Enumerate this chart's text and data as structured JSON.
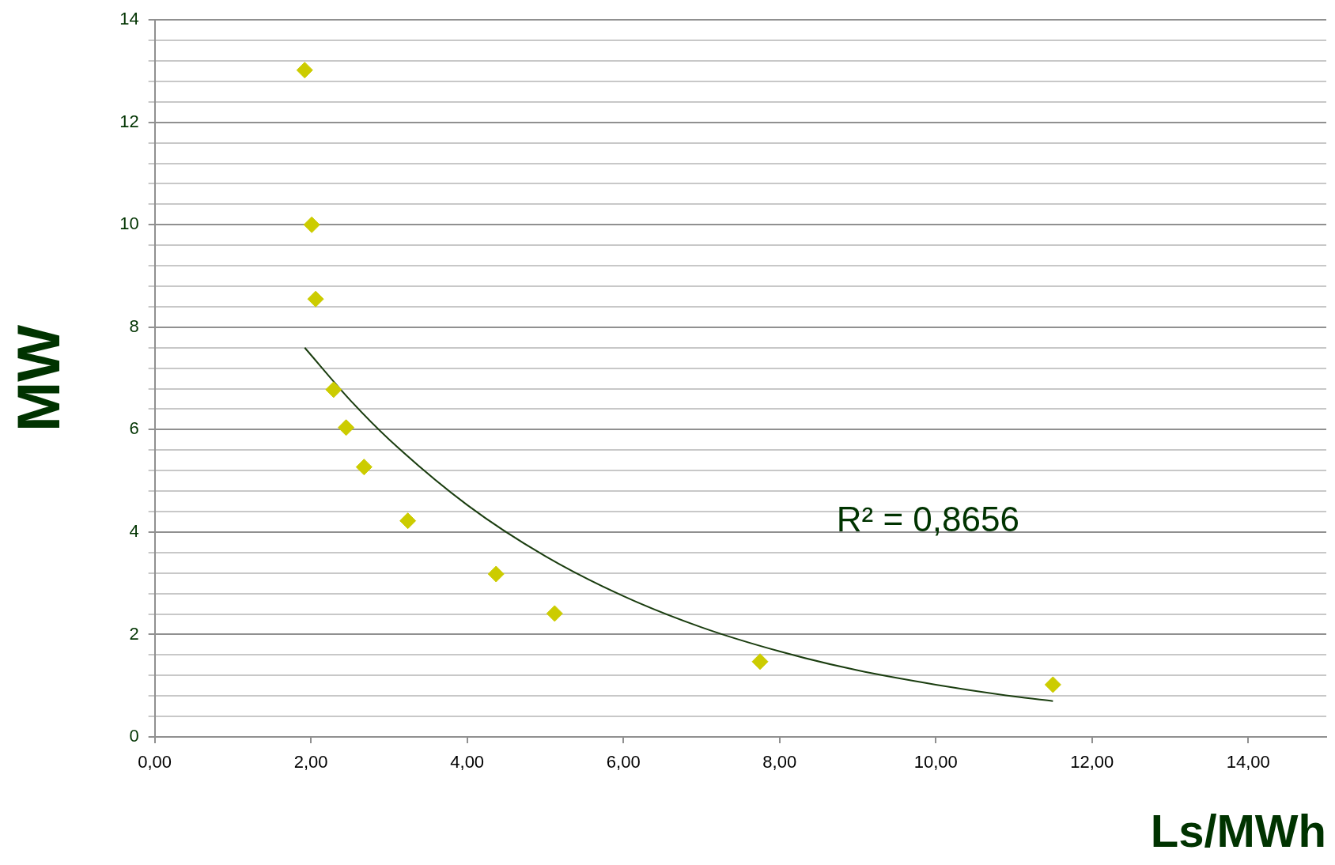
{
  "chart_data": {
    "type": "scatter",
    "xlabel": "Ls/MWh",
    "ylabel": "MW",
    "marker": "diamond",
    "grid": "y",
    "legend": false,
    "xlim": [
      0,
      15
    ],
    "ylim": [
      0,
      14
    ],
    "xticks": [
      {
        "value": 0,
        "label": "0,00"
      },
      {
        "value": 2,
        "label": "2,00"
      },
      {
        "value": 4,
        "label": "4,00"
      },
      {
        "value": 6,
        "label": "6,00"
      },
      {
        "value": 8,
        "label": "8,00"
      },
      {
        "value": 10,
        "label": "10,00"
      },
      {
        "value": 12,
        "label": "12,00"
      },
      {
        "value": 14,
        "label": "14,00"
      }
    ],
    "yticks": [
      0,
      {
        "value": 0.4,
        "label": null
      },
      {
        "value": 0.8,
        "label": null
      },
      {
        "value": 1.2,
        "label": null
      },
      {
        "value": 1.6,
        "label": null
      },
      2,
      {
        "value": 2.4,
        "label": null
      },
      {
        "value": 2.8,
        "label": null
      },
      {
        "value": 3.2,
        "label": null
      },
      {
        "value": 3.6,
        "label": null
      },
      4,
      {
        "value": 4.4,
        "label": null
      },
      {
        "value": 4.8,
        "label": null
      },
      {
        "value": 5.2,
        "label": null
      },
      {
        "value": 5.6,
        "label": null
      },
      6,
      {
        "value": 6.4,
        "label": null
      },
      {
        "value": 6.8,
        "label": null
      },
      {
        "value": 7.2,
        "label": null
      },
      {
        "value": 7.6,
        "label": null
      },
      8,
      {
        "value": 8.4,
        "label": null
      },
      {
        "value": 8.8,
        "label": null
      },
      {
        "value": 9.2,
        "label": null
      },
      {
        "value": 9.6,
        "label": null
      },
      10,
      {
        "value": 10.4,
        "label": null
      },
      {
        "value": 10.8,
        "label": null
      },
      {
        "value": 11.2,
        "label": null
      },
      {
        "value": 11.6,
        "label": null
      },
      12,
      {
        "value": 12.4,
        "label": null
      },
      {
        "value": 12.8,
        "label": null
      },
      {
        "value": 13.2,
        "label": null
      },
      {
        "value": 13.6,
        "label": null
      },
      14
    ],
    "series": [
      {
        "color": "#cccc00",
        "x": [
          1.92,
          2.01,
          2.06,
          2.29,
          2.45,
          2.68,
          3.24,
          4.37,
          5.12,
          7.75,
          11.5
        ],
        "values": [
          13.02,
          10.0,
          8.55,
          6.78,
          6.04,
          5.27,
          4.22,
          3.18,
          2.41,
          1.47,
          1.02
        ]
      },
      {
        "type": "line",
        "marker": "none",
        "color": "#1a3d0f",
        "x": [
          1.92,
          2.5,
          3,
          4,
          5,
          6,
          7,
          8,
          9,
          10,
          11,
          11.5
        ],
        "values": [
          7.6,
          6.58,
          5.81,
          4.53,
          3.53,
          2.75,
          2.14,
          1.67,
          1.3,
          1.02,
          0.79,
          0.7
        ]
      }
    ],
    "annotations": [
      "R² = 0,8656"
    ]
  }
}
